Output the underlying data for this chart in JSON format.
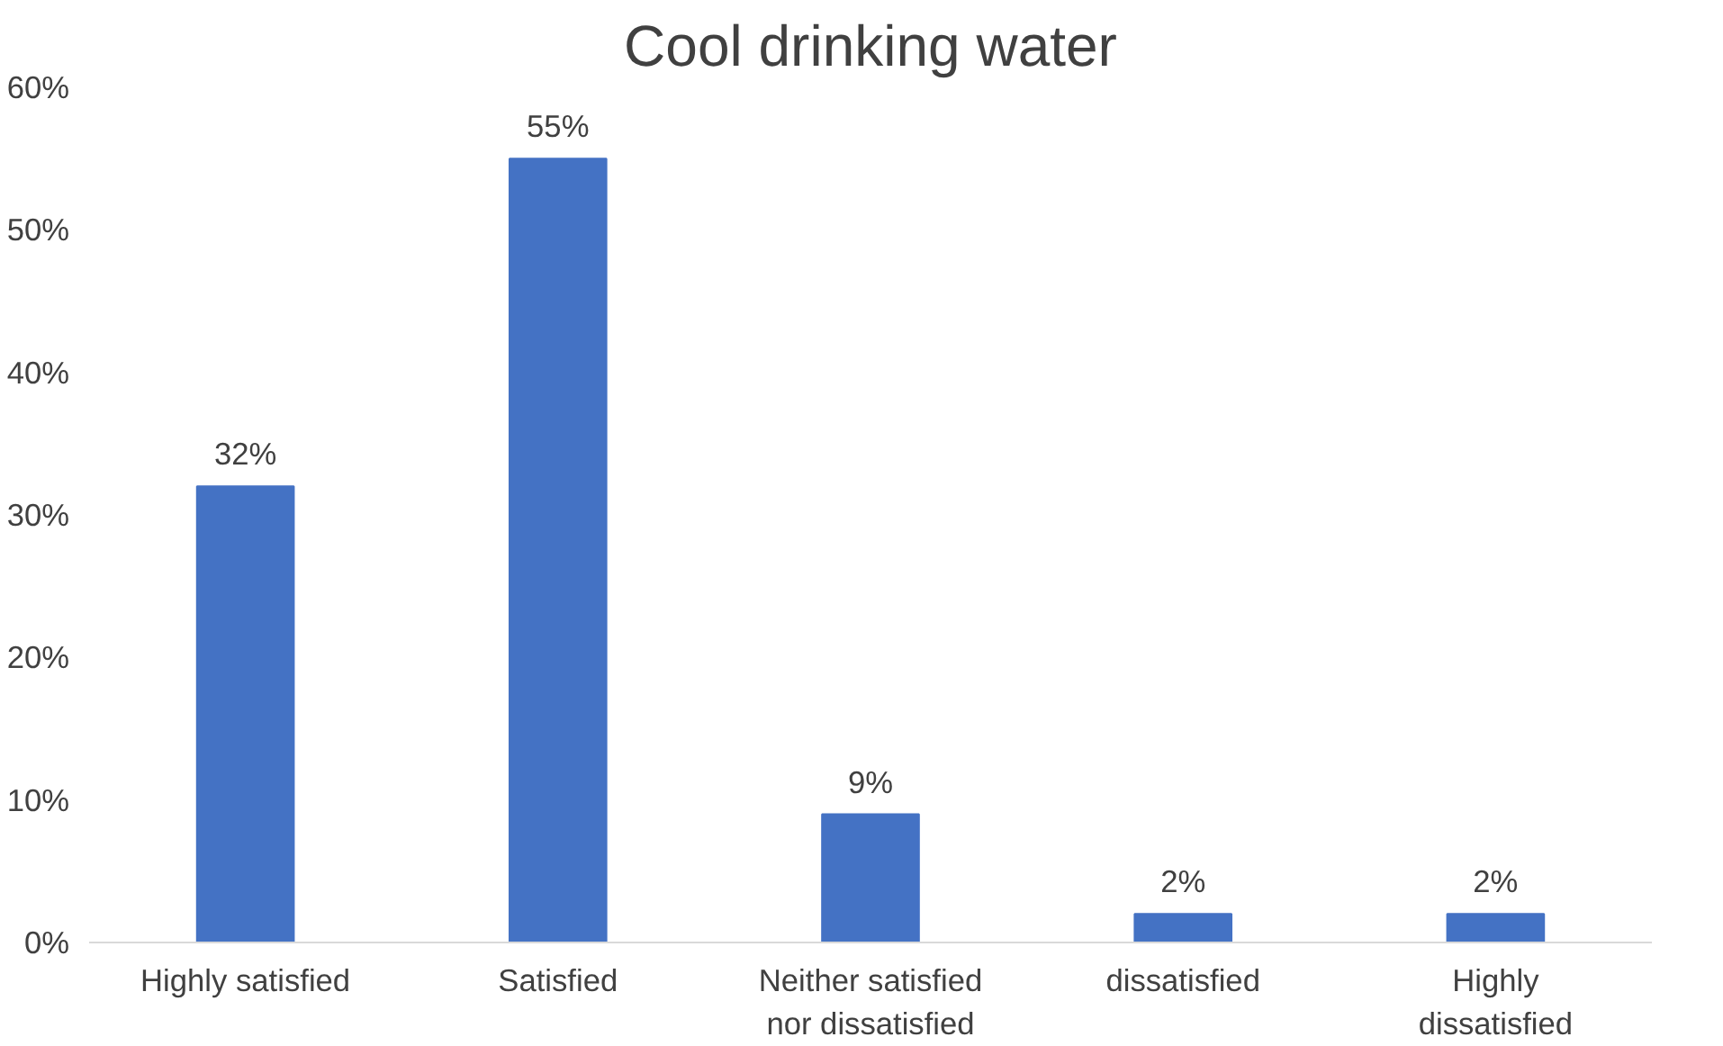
{
  "chart_data": {
    "type": "bar",
    "title": "Cool drinking water",
    "categories": [
      "Highly satisfied",
      "Satisfied",
      "Neither satisfied nor dissatisfied",
      "dissatisfied",
      "Highly dissatisfied"
    ],
    "values": [
      32,
      55,
      9,
      2,
      2
    ],
    "value_labels": [
      "32%",
      "55%",
      "9%",
      "2%",
      "2%"
    ],
    "color": "#4472c4",
    "ylim": [
      0,
      60
    ],
    "yticks": [
      {
        "value": 0,
        "label": "0%"
      },
      {
        "value": 10,
        "label": "10%"
      },
      {
        "value": 20,
        "label": "20%"
      },
      {
        "value": 30,
        "label": "30%"
      },
      {
        "value": 40,
        "label": "40%"
      },
      {
        "value": 50,
        "label": "50%"
      },
      {
        "value": 60,
        "label": "60%"
      }
    ],
    "grid": false
  }
}
